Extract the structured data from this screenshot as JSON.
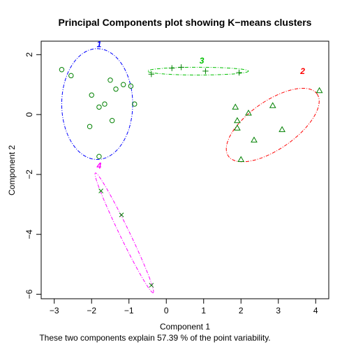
{
  "chart_data": {
    "type": "scatter",
    "title": "Principal Components plot showing K−means clusters",
    "xlabel": "Component 1",
    "ylabel": "Component 2",
    "subtitle": "These two components explain 57.39 % of the point variability.",
    "xlim": [
      -3.35,
      4.35
    ],
    "ylim": [
      -6.15,
      2.45
    ],
    "xticks": [
      -3,
      -2,
      -1,
      0,
      1,
      2,
      3,
      4
    ],
    "yticks": [
      -6,
      -4,
      -2,
      0,
      2
    ],
    "xtick_labels": [
      "−3",
      "−2",
      "−1",
      "0",
      "1",
      "2",
      "3",
      "4"
    ],
    "ytick_labels": [
      "−6",
      "−4",
      "−2",
      "0",
      "2"
    ],
    "grid": false,
    "point_color": "#008000",
    "clusters": [
      {
        "label": "1",
        "color": "#0000ff",
        "marker": "circle",
        "ellipse": {
          "cx": -1.85,
          "cy": 0.35,
          "rx": 0.95,
          "ry": 1.85,
          "angle": 0
        },
        "label_pos": [
          -1.8,
          2.25
        ],
        "points": [
          [
            -2.8,
            1.5
          ],
          [
            -2.55,
            1.3
          ],
          [
            -2.0,
            0.65
          ],
          [
            -1.8,
            0.25
          ],
          [
            -1.65,
            0.35
          ],
          [
            -1.5,
            1.15
          ],
          [
            -1.35,
            0.85
          ],
          [
            -1.15,
            1.0
          ],
          [
            -0.95,
            0.95
          ],
          [
            -0.85,
            0.35
          ],
          [
            -2.05,
            -0.4
          ],
          [
            -1.45,
            -0.2
          ],
          [
            -1.8,
            -1.4
          ]
        ]
      },
      {
        "label": "2",
        "color": "#ff0000",
        "marker": "triangle",
        "ellipse": {
          "cx": 2.85,
          "cy": -0.35,
          "rx": 1.45,
          "ry": 0.8,
          "angle": -35
        },
        "label_pos": [
          3.65,
          1.35
        ],
        "points": [
          [
            1.85,
            0.25
          ],
          [
            1.9,
            -0.2
          ],
          [
            1.9,
            -0.45
          ],
          [
            2.2,
            0.05
          ],
          [
            2.0,
            -1.5
          ],
          [
            2.35,
            -0.85
          ],
          [
            2.85,
            0.3
          ],
          [
            3.1,
            -0.5
          ],
          [
            4.1,
            0.8
          ]
        ]
      },
      {
        "label": "3",
        "color": "#00c000",
        "marker": "plus",
        "ellipse": {
          "cx": 0.85,
          "cy": 1.45,
          "rx": 1.35,
          "ry": 0.13,
          "angle": 0
        },
        "label_pos": [
          0.95,
          1.7
        ],
        "points": [
          [
            -0.4,
            1.35
          ],
          [
            0.15,
            1.55
          ],
          [
            0.4,
            1.58
          ],
          [
            1.05,
            1.45
          ],
          [
            1.95,
            1.4
          ]
        ]
      },
      {
        "label": "4",
        "color": "#ff00ff",
        "marker": "cross",
        "ellipse": {
          "cx": -1.08,
          "cy": -3.7,
          "rx": 2.2,
          "ry": 0.12,
          "angle": 0
        },
        "label_pos": [
          -1.8,
          -1.8
        ],
        "points": [
          [
            -1.75,
            -2.55
          ],
          [
            -1.2,
            -3.35
          ],
          [
            -0.4,
            -5.7
          ]
        ]
      }
    ]
  }
}
